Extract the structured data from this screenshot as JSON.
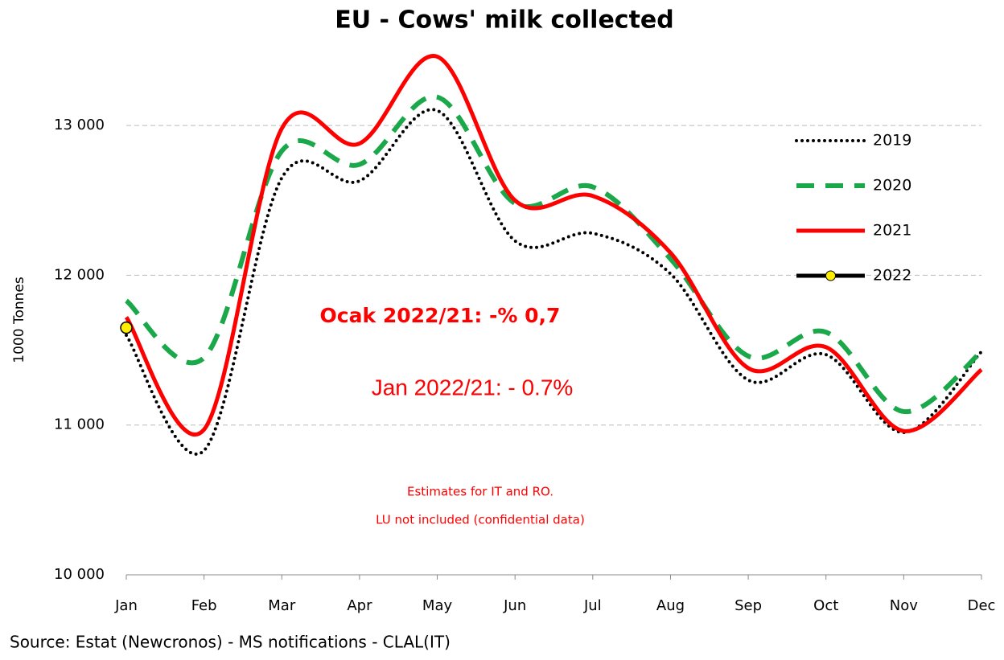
{
  "chart_data": {
    "type": "line",
    "title": "EU - Cows' milk collected",
    "y_label": "1000 Tonnes",
    "categories": [
      "Jan",
      "Feb",
      "Mar",
      "Apr",
      "May",
      "Jun",
      "Jul",
      "Aug",
      "Sep",
      "Oct",
      "Nov",
      "Dec"
    ],
    "series": [
      {
        "name": "2019",
        "color": "#000000",
        "line_style": "dotted",
        "values": [
          11600,
          10830,
          12650,
          12630,
          13100,
          12230,
          12280,
          12010,
          11300,
          11470,
          10950,
          11490
        ]
      },
      {
        "name": "2020",
        "color": "#1aa84a",
        "line_style": "dashed",
        "values": [
          11830,
          11450,
          12830,
          12740,
          13190,
          12480,
          12590,
          12110,
          11460,
          11620,
          11090,
          11490
        ]
      },
      {
        "name": "2021",
        "color": "#ff0000",
        "line_style": "solid",
        "values": [
          11720,
          10970,
          12980,
          12880,
          13460,
          12500,
          12530,
          12150,
          11380,
          11520,
          10960,
          11370
        ]
      },
      {
        "name": "2022",
        "color": "#000000",
        "line_style": "marker",
        "values": [
          11650,
          null,
          null,
          null,
          null,
          null,
          null,
          null,
          null,
          null,
          null,
          null
        ]
      }
    ],
    "ylim": [
      10000,
      13500
    ],
    "yticks": [
      {
        "value": 10000,
        "label": "10 000"
      },
      {
        "value": 11000,
        "label": "11 000"
      },
      {
        "value": 12000,
        "label": "12 000"
      },
      {
        "value": 13000,
        "label": "13 000"
      }
    ],
    "grid": true,
    "legend": "right",
    "annotations": [
      "Ocak 2022/21: -% 0,7",
      "Jan 2022/21: - 0.7%",
      "Estimates for  IT and  RO.",
      "LU not included (confidential data)"
    ],
    "source": "Source: Estat (Newcronos) - MS notifications - CLAL(IT)"
  }
}
